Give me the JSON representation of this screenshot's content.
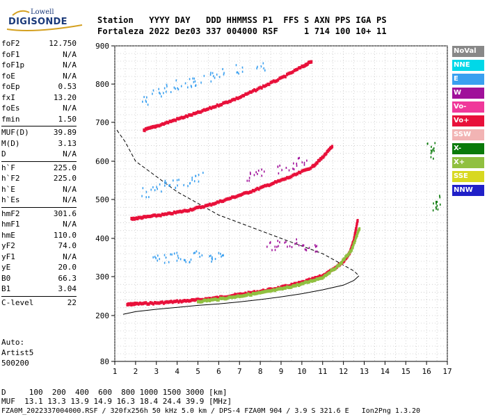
{
  "logo": {
    "line1": "Lowell",
    "line2": "DIGISONDE"
  },
  "header": {
    "labels": [
      "Station",
      "YYYY DAY",
      "DDD HHMMSS P1",
      "FFS S AXN PPS IGA PS"
    ],
    "values": [
      "Fortaleza",
      "2022 Dez03",
      "337 004000 RSF",
      "1 714 100 10+ 11"
    ]
  },
  "params": [
    {
      "group": [
        {
          "label": "foF2",
          "value": "12.750"
        },
        {
          "label": "foF1",
          "value": "N/A"
        },
        {
          "label": "foF1p",
          "value": "N/A"
        },
        {
          "label": "foE",
          "value": "N/A"
        },
        {
          "label": "foEp",
          "value": "0.53"
        },
        {
          "label": "fxI",
          "value": "13.20"
        },
        {
          "label": "foEs",
          "value": "N/A"
        },
        {
          "label": "fmin",
          "value": "1.50"
        }
      ]
    },
    {
      "group": [
        {
          "label": "MUF(D)",
          "value": "39.89"
        },
        {
          "label": "M(D)",
          "value": "3.13"
        },
        {
          "label": "D",
          "value": "N/A"
        }
      ]
    },
    {
      "group": [
        {
          "label": "h`F",
          "value": "225.0"
        },
        {
          "label": "h`F2",
          "value": "225.0"
        },
        {
          "label": "h`E",
          "value": "N/A"
        },
        {
          "label": "h`Es",
          "value": "N/A"
        }
      ]
    },
    {
      "group": [
        {
          "label": "hmF2",
          "value": "301.6"
        },
        {
          "label": "hmF1",
          "value": "N/A"
        },
        {
          "label": "hmE",
          "value": "110.0"
        },
        {
          "label": "yF2",
          "value": "74.0"
        },
        {
          "label": "yF1",
          "value": "N/A"
        },
        {
          "label": "yE",
          "value": "20.0"
        },
        {
          "label": "B0",
          "value": "66.3"
        },
        {
          "label": "B1",
          "value": "3.04"
        }
      ]
    },
    {
      "group": [
        {
          "label": "C-level",
          "value": "22"
        }
      ]
    }
  ],
  "auto": {
    "line1": "Auto:",
    "line2": "Artist5",
    "line3": "500200"
  },
  "legend": [
    {
      "label": "NoVal",
      "color": "#888888"
    },
    {
      "label": "NNE",
      "color": "#00d8e8"
    },
    {
      "label": "E",
      "color": "#3aa0f0"
    },
    {
      "label": "W",
      "color": "#a0109a"
    },
    {
      "label": "Vo-",
      "color": "#f0389a"
    },
    {
      "label": "Vo+",
      "color": "#e8103a"
    },
    {
      "label": "SSW",
      "color": "#f2b4b4"
    },
    {
      "label": "X-",
      "color": "#0a7a0a"
    },
    {
      "label": "X+",
      "color": "#90c040"
    },
    {
      "label": "SSE",
      "color": "#d8d820"
    },
    {
      "label": "NNW",
      "color": "#2020c8"
    }
  ],
  "footer": {
    "line1": "D     100  200  400  600  800 1000 1500 3000 [km]",
    "line2": "MUF  13.1 13.3 13.9 14.9 16.3 18.4 24.4 39.9 [MHz]",
    "line3": "FZA0M_2022337004000.RSF / 320fx256h 50 kHz 5.0 km / DPS-4 FZA0M 904 / 3.9 S 321.6 E   Ion2Png 1.3.20"
  },
  "chart_data": {
    "type": "scatter",
    "title": "",
    "xlabel": "",
    "ylabel": "",
    "xlim": [
      1,
      17
    ],
    "ylim": [
      80,
      900
    ],
    "xticks": [
      1,
      2,
      3,
      4,
      5,
      6,
      7,
      8,
      9,
      10,
      11,
      12,
      13,
      14,
      15,
      16,
      17
    ],
    "yticks": [
      80,
      200,
      300,
      400,
      500,
      600,
      700,
      800,
      900
    ],
    "grid": true,
    "series": [
      {
        "name": "Vo+",
        "color": "#e8103a",
        "style": "band",
        "x": [
          1.6,
          2,
          3,
          4,
          5,
          6,
          7,
          8,
          9,
          10,
          11,
          11.5,
          12,
          12.3,
          12.5,
          12.7
        ],
        "y": [
          228,
          230,
          232,
          236,
          240,
          246,
          254,
          262,
          272,
          285,
          302,
          318,
          340,
          362,
          395,
          450
        ]
      },
      {
        "name": "Vo+",
        "color": "#e8103a",
        "style": "band",
        "x": [
          1.8,
          2.5,
          3.5,
          4.5,
          5.5,
          6.5,
          7.5,
          8.5,
          9.5,
          10.5,
          11,
          11.5
        ],
        "y": [
          450,
          455,
          462,
          472,
          485,
          502,
          520,
          540,
          560,
          585,
          610,
          640
        ]
      },
      {
        "name": "Vo+",
        "color": "#e8103a",
        "style": "band",
        "x": [
          2.4,
          3,
          4,
          5,
          6,
          7,
          8,
          9,
          10,
          10.5
        ],
        "y": [
          680,
          690,
          708,
          725,
          745,
          765,
          790,
          815,
          845,
          860
        ]
      },
      {
        "name": "X+",
        "color": "#90c040",
        "style": "band",
        "x": [
          5,
          6,
          7,
          8,
          9,
          10,
          11,
          11.8,
          12.4,
          12.8
        ],
        "y": [
          236,
          242,
          250,
          258,
          268,
          281,
          298,
          330,
          370,
          430
        ]
      },
      {
        "name": "E",
        "color": "#3aa0f0",
        "style": "cloud",
        "x": [
          3,
          3.5,
          4,
          4.5,
          5,
          5.5,
          6,
          2.5,
          3,
          3.5,
          4,
          4.5,
          5,
          2.5,
          3,
          3.5,
          4,
          4.5,
          5,
          5.5,
          6,
          7,
          8
        ],
        "y": [
          345,
          350,
          355,
          352,
          360,
          348,
          356,
          520,
          530,
          540,
          545,
          550,
          560,
          760,
          780,
          790,
          800,
          805,
          810,
          820,
          830,
          840,
          850
        ]
      },
      {
        "name": "W",
        "color": "#a0109a",
        "style": "cloud",
        "x": [
          8.5,
          9,
          9.5,
          10,
          10.5,
          7.5,
          8,
          9,
          9.5,
          10
        ],
        "y": [
          380,
          385,
          390,
          378,
          375,
          560,
          570,
          580,
          590,
          600
        ]
      },
      {
        "name": "X-",
        "color": "#0a7a0a",
        "style": "cloud",
        "x": [
          16.2,
          16.2,
          16.3,
          16.5
        ],
        "y": [
          640,
          620,
          480,
          500
        ]
      }
    ],
    "model_curves": [
      {
        "name": "dashed",
        "x": [
          1.1,
          1.5,
          2,
          3,
          4,
          5,
          6,
          7,
          8,
          9,
          10,
          11,
          12,
          12.5,
          12.75
        ],
        "y": [
          680,
          650,
          600,
          560,
          520,
          490,
          460,
          440,
          420,
          400,
          380,
          360,
          330,
          315,
          302
        ]
      },
      {
        "name": "solid",
        "x": [
          1.4,
          2,
          3,
          4,
          5,
          6,
          7,
          8,
          9,
          10,
          11,
          12,
          12.5,
          12.75
        ],
        "y": [
          203,
          210,
          216,
          221,
          226,
          230,
          235,
          241,
          248,
          256,
          266,
          278,
          290,
          302
        ]
      }
    ]
  }
}
